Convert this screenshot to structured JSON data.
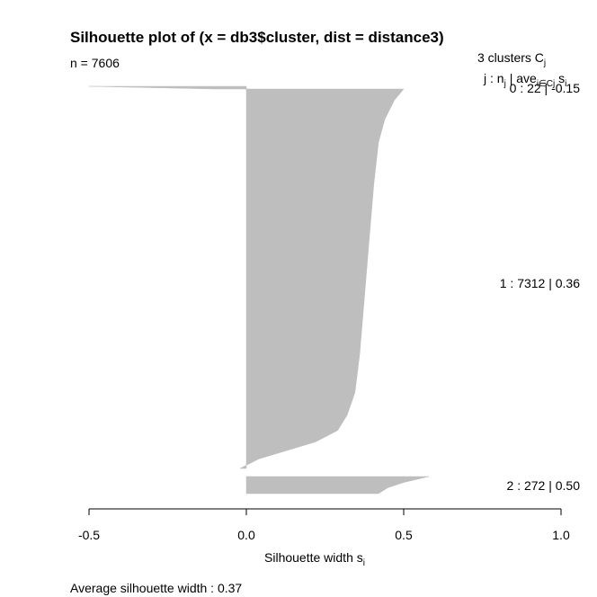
{
  "chart_data": {
    "type": "silhouette",
    "title": "Silhouette plot of (x = db3$cluster, dist = distance3)",
    "n_label": "n = 7606",
    "n": 7606,
    "n_clusters": 3,
    "header": {
      "clusters_text": "3  clusters  C",
      "clusters_sub": "j",
      "columns_text": "j :  n",
      "columns_sub1": "j",
      "columns_mid": " | ave",
      "columns_sub2": "i∈Cj",
      "columns_end": "  s",
      "columns_sub3": "i"
    },
    "clusters": [
      {
        "id": 0,
        "size": 22,
        "avg_width": -0.15,
        "label": "0 :  22  |  -0.15",
        "profile": [
          [
            0,
            -0.5
          ],
          [
            1,
            -0.1
          ]
        ]
      },
      {
        "id": 1,
        "size": 7312,
        "avg_width": 0.36,
        "label": "1 :  7312  |  0.36",
        "profile": [
          [
            0,
            0.5
          ],
          [
            0.03,
            0.47
          ],
          [
            0.08,
            0.44
          ],
          [
            0.14,
            0.42
          ],
          [
            0.25,
            0.405
          ],
          [
            0.4,
            0.39
          ],
          [
            0.55,
            0.375
          ],
          [
            0.7,
            0.36
          ],
          [
            0.8,
            0.345
          ],
          [
            0.86,
            0.32
          ],
          [
            0.9,
            0.29
          ],
          [
            0.93,
            0.22
          ],
          [
            0.955,
            0.12
          ],
          [
            0.975,
            0.04
          ],
          [
            1,
            -0.02
          ]
        ]
      },
      {
        "id": 2,
        "size": 272,
        "avg_width": 0.5,
        "label": "2 :  272  |  0.50",
        "profile": [
          [
            0,
            0.58
          ],
          [
            0.35,
            0.5
          ],
          [
            0.65,
            0.45
          ],
          [
            1,
            0.42
          ]
        ]
      }
    ],
    "xlabel": "Silhouette width s",
    "xlabel_sub": "i",
    "xlim": [
      -0.5,
      1.0
    ],
    "xticks": [
      -0.5,
      0.0,
      0.5,
      1.0
    ],
    "xtick_labels": [
      "-0.5",
      "0.0",
      "0.5",
      "1.0"
    ],
    "bar_color": "#bebebe",
    "avg_label": "Average silhouette width :  0.37",
    "avg_width": 0.37,
    "grid": false
  }
}
